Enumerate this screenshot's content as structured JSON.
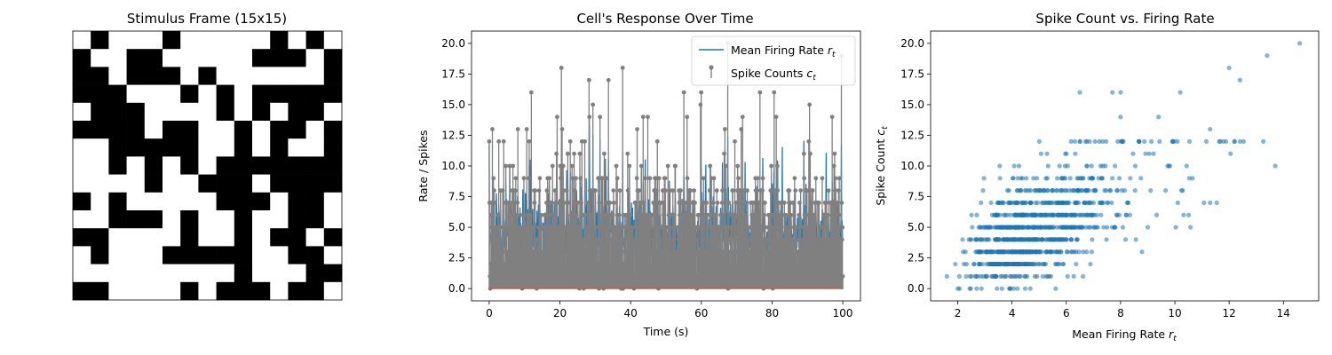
{
  "chart_data": [
    {
      "type": "heatmap",
      "title": "Stimulus Frame (15x15)",
      "colors": {
        "on": "#000000",
        "off": "#ffffff"
      },
      "grid": [
        [
          0,
          1,
          0,
          0,
          0,
          1,
          0,
          0,
          0,
          0,
          0,
          1,
          0,
          1,
          0
        ],
        [
          1,
          0,
          0,
          1,
          1,
          0,
          0,
          0,
          0,
          0,
          1,
          1,
          1,
          0,
          1
        ],
        [
          1,
          1,
          0,
          1,
          1,
          1,
          0,
          1,
          0,
          0,
          0,
          0,
          0,
          0,
          1
        ],
        [
          1,
          1,
          1,
          0,
          0,
          0,
          1,
          0,
          1,
          0,
          1,
          1,
          1,
          1,
          1
        ],
        [
          0,
          1,
          1,
          1,
          0,
          0,
          0,
          0,
          1,
          0,
          1,
          0,
          1,
          1,
          0
        ],
        [
          1,
          1,
          1,
          1,
          0,
          1,
          1,
          0,
          0,
          1,
          0,
          1,
          1,
          0,
          1
        ],
        [
          0,
          0,
          1,
          1,
          1,
          1,
          1,
          0,
          0,
          1,
          0,
          1,
          0,
          0,
          1
        ],
        [
          0,
          0,
          1,
          0,
          1,
          0,
          1,
          0,
          1,
          1,
          1,
          1,
          1,
          1,
          1
        ],
        [
          0,
          0,
          0,
          0,
          1,
          0,
          0,
          1,
          1,
          1,
          0,
          1,
          1,
          1,
          1
        ],
        [
          1,
          0,
          1,
          0,
          0,
          0,
          0,
          0,
          1,
          1,
          1,
          0,
          1,
          1,
          0
        ],
        [
          0,
          0,
          1,
          1,
          1,
          0,
          1,
          0,
          0,
          1,
          0,
          0,
          1,
          1,
          0
        ],
        [
          1,
          1,
          0,
          0,
          0,
          0,
          1,
          0,
          0,
          1,
          0,
          1,
          1,
          0,
          1
        ],
        [
          0,
          1,
          0,
          0,
          0,
          1,
          1,
          1,
          1,
          1,
          0,
          0,
          1,
          1,
          0
        ],
        [
          0,
          0,
          0,
          0,
          0,
          0,
          0,
          0,
          0,
          1,
          0,
          0,
          0,
          1,
          1
        ],
        [
          1,
          1,
          0,
          0,
          0,
          0,
          1,
          0,
          1,
          1,
          1,
          0,
          1,
          1,
          0
        ]
      ]
    },
    {
      "type": "line",
      "title": "Cell's Response Over Time",
      "xlabel": "Time (s)",
      "ylabel": "Rate / Spikes",
      "xlim": [
        -5,
        105
      ],
      "ylim": [
        -1,
        21
      ],
      "xticks": [
        0,
        20,
        40,
        60,
        80,
        100
      ],
      "xtick_labels": [
        "0",
        "20",
        "40",
        "60",
        "80",
        "100"
      ],
      "yticks": [
        0,
        2.5,
        5,
        7.5,
        10,
        12.5,
        15,
        17.5,
        20
      ],
      "ytick_labels": [
        "0.0",
        "2.5",
        "5.0",
        "7.5",
        "10.0",
        "12.5",
        "15.0",
        "17.5",
        "20.0"
      ],
      "legend_position": "top-right",
      "series": [
        {
          "name": "Mean Firing Rate",
          "name_sub": "t",
          "name_var": "r",
          "color": "#1f77b4",
          "kind": "line"
        },
        {
          "name": "Spike Counts",
          "name_sub": "t",
          "name_var": "c",
          "color": "#808080",
          "kind": "stem"
        }
      ],
      "n_samples": 1000,
      "highlight_stems": [
        {
          "x": 11.9,
          "y": 16
        },
        {
          "x": 19.2,
          "y": 14
        },
        {
          "x": 20.6,
          "y": 13
        },
        {
          "x": 33.7,
          "y": 17
        },
        {
          "x": 37.7,
          "y": 18
        },
        {
          "x": 41.8,
          "y": 13
        },
        {
          "x": 43.5,
          "y": 14
        },
        {
          "x": 60.0,
          "y": 16
        },
        {
          "x": 67.5,
          "y": 20
        },
        {
          "x": 71.3,
          "y": 13
        },
        {
          "x": 80.6,
          "y": 16
        },
        {
          "x": 81.2,
          "y": 14
        },
        {
          "x": 97.0,
          "y": 14
        },
        {
          "x": 99.6,
          "y": 19
        }
      ]
    },
    {
      "type": "scatter",
      "title": "Spike Count vs. Firing Rate",
      "xlabel": "Mean Firing Rate",
      "xlabel_var": "r",
      "xlabel_sub": "t",
      "ylabel": "Spike Count",
      "ylabel_var": "c",
      "ylabel_sub": "t",
      "xlim": [
        1.0,
        15.3
      ],
      "ylim": [
        -1,
        21
      ],
      "xticks": [
        2,
        4,
        6,
        8,
        10,
        12,
        14
      ],
      "xtick_labels": [
        "2",
        "4",
        "6",
        "8",
        "10",
        "12",
        "14"
      ],
      "yticks": [
        0,
        2.5,
        5,
        7.5,
        10,
        12.5,
        15,
        17.5,
        20
      ],
      "ytick_labels": [
        "0.0",
        "2.5",
        "5.0",
        "7.5",
        "10.0",
        "12.5",
        "15.0",
        "17.5",
        "20.0"
      ],
      "color": "#1f77b4",
      "n_points": 1000,
      "notable_points": [
        {
          "x": 1.6,
          "y": 1
        },
        {
          "x": 2.0,
          "y": 0
        },
        {
          "x": 6.5,
          "y": 16
        },
        {
          "x": 7.7,
          "y": 16
        },
        {
          "x": 8.0,
          "y": 16
        },
        {
          "x": 10.2,
          "y": 16
        },
        {
          "x": 9.4,
          "y": 14
        },
        {
          "x": 8.0,
          "y": 14
        },
        {
          "x": 12.0,
          "y": 18
        },
        {
          "x": 12.4,
          "y": 17
        },
        {
          "x": 13.4,
          "y": 19
        },
        {
          "x": 14.6,
          "y": 20
        },
        {
          "x": 13.7,
          "y": 10
        },
        {
          "x": 11.3,
          "y": 7
        },
        {
          "x": 12.2,
          "y": 12
        },
        {
          "x": 11.3,
          "y": 13
        }
      ]
    }
  ]
}
